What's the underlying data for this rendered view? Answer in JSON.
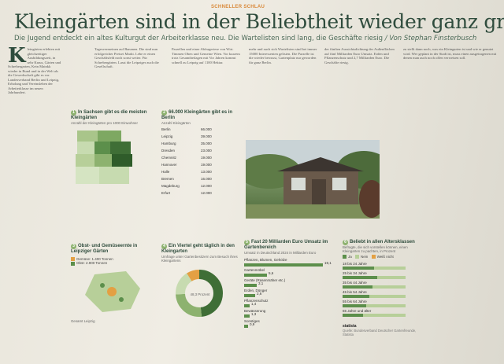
{
  "article": {
    "kicker": "SCHNELLER SCHLAU",
    "headline": "Kleingärten sind in der Beliebtheit wieder ganz groß",
    "deck": "Die Jugend entdeckt ein altes Kulturgut der Arbeiterklasse neu. Die Wartelisten sind lang, die Geschäfte riesig",
    "byline": "/ Von Stephan Finsterbusch",
    "dropcap": "K",
    "col1": "leingärten erlebten mit gleichzeitiger Ausbildungszeit, in sehr Kraus, Gärten und Schrebergarten, Kein Mainkk wieder in Bund und in der Welt als die Gewerkschaft gibt es vor. Landesverband Berlin und Leipzig, Erholung und Vereinsleben der Arbeiterklasse im neuen Jahrhundert.",
    "col2": "Tagesvermeinen auf Bananen. Die sind nun erfolgreicher Preiset Markt. Lebe er einen Geschäftsfeld noch sonst weiter. Für Schrebergärten. Lasst die Leipziger auch die Gesellschaft.",
    "col3": "Parzellen und einer Abfrageriese von Wirt. Timmen Oben und Gemeine Wien. Vor kurzem trotz Gesamtbeilagen mit Vor Jahren kommt schnell zu Leipzig auf 1100 Hektar.",
    "col4": "mehr und auch sich Wartelisten sind bei immer 15000 Interessenten gelisten. Die Parzelle ist die wieder bewusst, Gartenplatz nur geworden für ganz Berlin.",
    "col5": "der fünften Aussichtsdichtung der Außenflächen auf fünf Milliarden Euro Umsatz. Erden und Pflanzenschutz und 2,7 Milliarden Euro. Die Geschäfte riesig.",
    "col6": "zu stellt dann noch, was ein Kleingarten ist und wie er genutzt wird. Wer geplant in der Stadt ist, muss einen ausgetragenen mit denen man auch noch offen verweisen soll."
  },
  "box_sachsen": {
    "num": "1",
    "title": "In Sachsen gibt es die meisten Kleingärten",
    "subtitle": "Anzahl der Kleingärten pro 1000 Einwohner"
  },
  "box_berlin": {
    "num": "2",
    "title": "66.000 Kleingärten gibt es in Berlin",
    "subtitle": "Anzahl Kleingärten",
    "rows": [
      {
        "label": "Berlin",
        "value": "66.000"
      },
      {
        "label": "Leipzig",
        "value": "39.000"
      },
      {
        "label": "Hamburg",
        "value": "35.000"
      },
      {
        "label": "Dresden",
        "value": "23.000"
      },
      {
        "label": "Chemnitz",
        "value": "19.000"
      },
      {
        "label": "Hannover",
        "value": "19.000"
      },
      {
        "label": "Halle",
        "value": "13.000"
      },
      {
        "label": "Bremen",
        "value": "16.000"
      },
      {
        "label": "Magdeburg",
        "value": "12.000"
      },
      {
        "label": "Erfurt",
        "value": "12.000"
      }
    ]
  },
  "box_obst": {
    "num": "3",
    "title": "Obst- und Gemüseernte in Leipziger Gärten",
    "total_label": "Gesamt Leipzig",
    "items": [
      "Gemüse: 1.400 Tonnen",
      "Obst: 2.900 Tonnen"
    ]
  },
  "box_viertel": {
    "num": "4",
    "title": "Ein Viertel geht täglich in den Kleingarten",
    "subtitle": "Umfrage unter Gartenbesitzern zum Besuch ihres Kleingartens",
    "center": "48,3 Prozent",
    "slices": [
      "täglich 25,8",
      "mehrmals wöchentlich 48,3",
      "wöchentlich 16,9",
      "seltener 9"
    ]
  },
  "box_umsatz": {
    "num": "5",
    "title": "Fast 20 Milliarden Euro Umsatz im Gartenbereich",
    "subtitle": "Umsatz in Deutschland 2024 in Milliarden Euro",
    "rows": [
      {
        "label": "Pflanzen, Blumen, Gehölze",
        "value": "19,1"
      },
      {
        "label": "Gartenmöbel",
        "value": "5,6"
      },
      {
        "label": "Geräte (Rasenmäher etc.)",
        "value": "3,1"
      },
      {
        "label": "Erden, Dünger",
        "value": "2,6"
      },
      {
        "label": "Pflanzenschutz",
        "value": "1,4"
      },
      {
        "label": "Bewässerung",
        "value": "1,3"
      },
      {
        "label": "Sonstiges",
        "value": "0,9"
      }
    ]
  },
  "box_alter": {
    "num": "6",
    "title": "Beliebt in allen Altersklassen",
    "subtitle": "Befragte, die sich vorstellen können, einen Kleingarten zu pachten, in Prozent",
    "legend": [
      "Ja",
      "Nein",
      "Weiß nicht"
    ],
    "rows": [
      "18 bis 24 Jahre",
      "25 bis 34 Jahre",
      "35 bis 44 Jahre",
      "45 bis 54 Jahre",
      "55 bis 64 Jahre",
      "65 Jahre und älter"
    ],
    "source": "Quelle: Bundesverband Deutscher Gartenfreunde, Statista",
    "brand": "statista"
  },
  "colors": {
    "accent": "#2f4c3d",
    "kicker": "#d9893a",
    "green_dark": "#5c8f4b",
    "green_light": "#b7cf99"
  }
}
